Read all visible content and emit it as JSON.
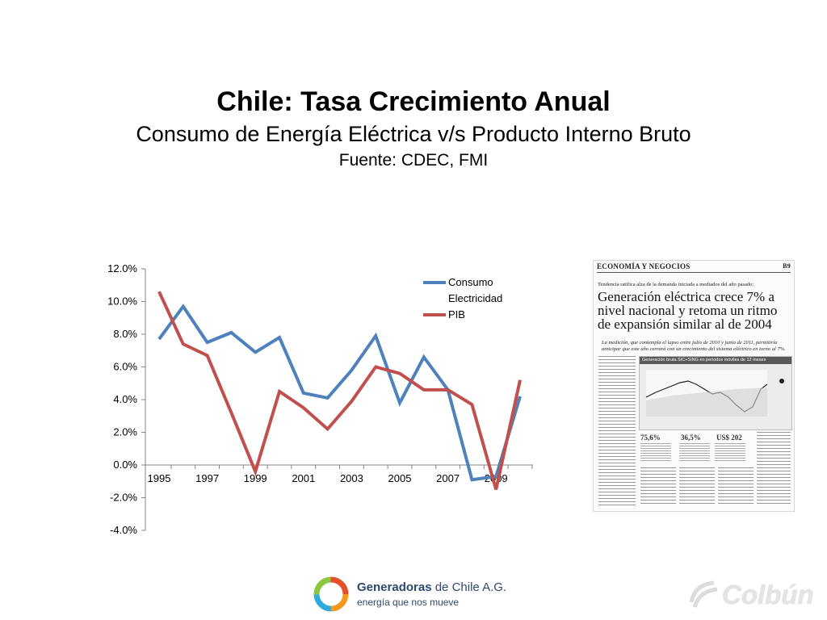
{
  "slide": {
    "title": "Chile: Tasa Crecimiento Anual",
    "subtitle": "Consumo de Energía Eléctrica v/s Producto Interno Bruto",
    "source": "Fuente: CDEC, FMI"
  },
  "chart_data": {
    "type": "line",
    "x": [
      1995,
      1996,
      1997,
      1998,
      1999,
      2000,
      2001,
      2002,
      2003,
      2004,
      2005,
      2006,
      2007,
      2008,
      2009,
      2010
    ],
    "x_tick_labels": [
      "1995",
      "1997",
      "1999",
      "2001",
      "2003",
      "2005",
      "2007",
      "2009"
    ],
    "y_tick_labels": [
      "12.0%",
      "10.0%",
      "8.0%",
      "6.0%",
      "4.0%",
      "2.0%",
      "0.0%",
      "-2.0%",
      "-4.0%"
    ],
    "ylim": [
      -4,
      12
    ],
    "grid": false,
    "legend_position": "top-right",
    "series": [
      {
        "name": "Consumo Electricidad",
        "legend_lines": [
          "Consumo",
          "Electricidad"
        ],
        "color": "#4f81bd",
        "values": [
          7.7,
          9.7,
          7.5,
          8.1,
          6.9,
          7.8,
          4.4,
          4.1,
          5.8,
          7.9,
          3.8,
          6.6,
          4.6,
          -0.9,
          -0.7,
          4.2
        ]
      },
      {
        "name": "PIB",
        "legend_lines": [
          "PIB"
        ],
        "color": "#c0504d",
        "values": [
          10.6,
          7.4,
          6.7,
          3.2,
          -0.4,
          4.5,
          3.5,
          2.2,
          3.9,
          6.0,
          5.6,
          4.6,
          4.6,
          3.7,
          -1.5,
          5.2
        ]
      }
    ]
  },
  "clipping": {
    "section": "ECONOMÍA Y NEGOCIOS",
    "page": "B9",
    "kicker": "Tendencia ratifica alza de la demanda iniciada a mediados del año pasado:",
    "headline": "Generación eléctrica crece 7% a nivel nacional y retoma un ritmo de expansión similar al de 2004",
    "deck": "La medición, que contempla el lapso entre julio de 2010 y junio de 2011, permitiría anticipar que este año cerrará con un crecimiento del sistema eléctrico en torno al 7%.",
    "graphic_title": "Generación bruta SIC+SING en periodos móviles de 12 meses",
    "stats": [
      "75,6%",
      "36,5%",
      "US$ 202"
    ]
  },
  "logos": {
    "generadoras_name_bold": "Generadoras",
    "generadoras_name_rest": " de Chile A.G.",
    "generadoras_tagline": "energía que nos mueve",
    "colbun": "Colbún"
  }
}
